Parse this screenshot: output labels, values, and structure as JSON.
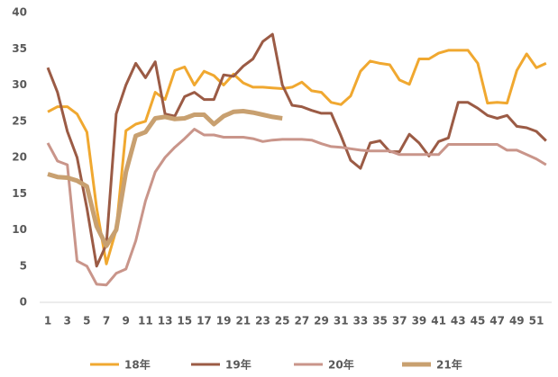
{
  "chart_data": {
    "type": "line",
    "categories": [
      "1",
      null,
      "3",
      null,
      "5",
      null,
      "7",
      null,
      "9",
      null,
      "11",
      null,
      "13",
      null,
      "15",
      null,
      "17",
      null,
      "19",
      null,
      "21",
      null,
      "23",
      null,
      "25",
      null,
      "27",
      null,
      "29",
      null,
      "31",
      null,
      "33",
      null,
      "35",
      null,
      "37",
      null,
      "39",
      null,
      "41",
      null,
      "43",
      null,
      "45",
      null,
      "47",
      null,
      "49",
      null,
      "51",
      null
    ],
    "ylim": [
      0,
      40
    ],
    "yticks": [
      0,
      5,
      10,
      15,
      20,
      25,
      30,
      35,
      40
    ],
    "grid": false,
    "legend": "bottom",
    "series": [
      {
        "name": "18年",
        "color": "#f0a830",
        "width": 3,
        "values": [
          26.3,
          27,
          27,
          26,
          23.5,
          13,
          5.3,
          10,
          23.7,
          24.6,
          25,
          29,
          28,
          32,
          32.5,
          30,
          31.9,
          31.3,
          30,
          31.5,
          30.3,
          29.7,
          29.7,
          29.6,
          29.5,
          29.7,
          30.4,
          29.2,
          29,
          27.6,
          27.3,
          28.5,
          31.9,
          33.3,
          33,
          32.8,
          30.7,
          30.1,
          33.6,
          33.6,
          34.4,
          34.8,
          34.8,
          34.8,
          33,
          27.5,
          27.6,
          27.5,
          32,
          34.3,
          32.4,
          33
        ]
      },
      {
        "name": "19年",
        "color": "#9b5b45",
        "width": 3,
        "values": [
          32.4,
          29,
          23.6,
          20,
          13,
          5,
          8,
          26,
          30,
          33,
          31,
          33.2,
          26,
          25.7,
          28.4,
          29,
          28,
          28,
          31.4,
          31.2,
          32.6,
          33.6,
          36,
          37,
          30,
          27.2,
          27,
          26.5,
          26.1,
          26.1,
          23,
          19.6,
          18.5,
          22,
          22.3,
          20.8,
          20.8,
          23.2,
          22,
          20.2,
          22.2,
          22.7,
          27.6,
          27.6,
          26.8,
          25.8,
          25.4,
          25.8,
          24.3,
          24.1,
          23.6,
          22.3
        ]
      },
      {
        "name": "20年",
        "color": "#c9958a",
        "width": 3,
        "values": [
          22,
          19.5,
          19,
          5.7,
          5,
          2.5,
          2.4,
          4,
          4.6,
          8.5,
          14,
          18,
          20,
          21.4,
          22.6,
          23.9,
          23.1,
          23.1,
          22.8,
          22.8,
          22.8,
          22.6,
          22.2,
          22.4,
          22.5,
          22.5,
          22.5,
          22.4,
          21.9,
          21.5,
          21.4,
          21.2,
          21,
          20.9,
          20.9,
          20.9,
          20.4,
          20.4,
          20.4,
          20.4,
          20.4,
          21.8,
          21.8,
          21.8,
          21.8,
          21.8,
          21.8,
          21,
          21,
          20.4,
          19.8,
          19
        ]
      },
      {
        "name": "21年",
        "color": "#c8a070",
        "width": 5,
        "values": [
          17.7,
          17.3,
          17.2,
          16.8,
          16,
          10.5,
          7.8,
          10,
          18,
          23,
          23.5,
          25.4,
          25.6,
          25.3,
          25.4,
          25.9,
          25.9,
          24.6,
          25.7,
          26.3,
          26.4,
          26.2,
          25.9,
          25.6,
          25.4,
          null,
          null,
          null,
          null,
          null,
          null,
          null,
          null,
          null,
          null,
          null,
          null,
          null,
          null,
          null,
          null,
          null,
          null,
          null,
          null,
          null,
          null,
          null,
          null,
          null,
          null,
          null
        ]
      }
    ]
  }
}
